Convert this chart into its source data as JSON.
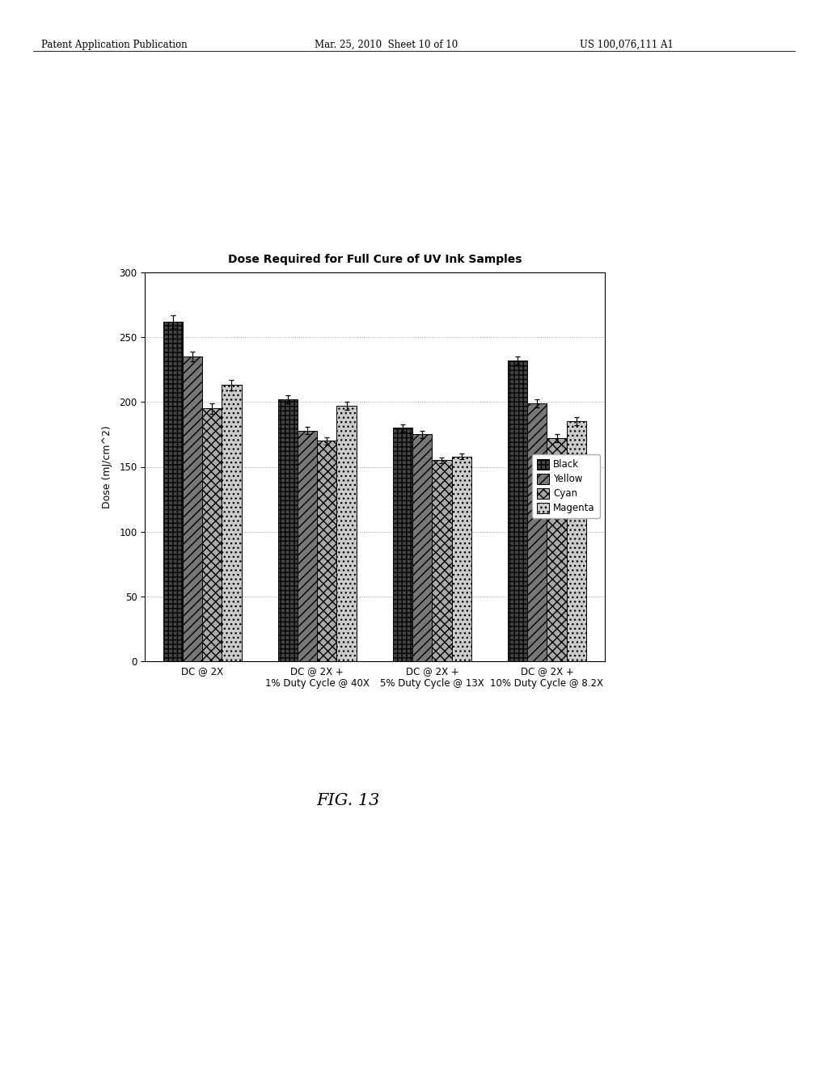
{
  "title": "Dose Required for Full Cure of UV Ink Samples",
  "ylabel": "Dose (mJ/cm^2)",
  "groups": [
    "DC @ 2X",
    "DC @ 2X +\n1% Duty Cycle @ 40X",
    "DC @ 2X +\n5% Duty Cycle @ 13X",
    "DC @ 2X +\n10% Duty Cycle @ 8.2X"
  ],
  "series_labels": [
    "Black",
    "Yellow",
    "Cyan",
    "Magenta"
  ],
  "values": [
    [
      262,
      235,
      195,
      213
    ],
    [
      202,
      178,
      170,
      197
    ],
    [
      180,
      175,
      155,
      158
    ],
    [
      232,
      199,
      172,
      185
    ]
  ],
  "errors": [
    [
      5,
      4,
      4,
      4
    ],
    [
      3,
      3,
      3,
      3
    ],
    [
      3,
      3,
      2,
      2
    ],
    [
      3,
      3,
      3,
      3
    ]
  ],
  "ylim": [
    0,
    300
  ],
  "yticks": [
    0,
    50,
    100,
    150,
    200,
    250,
    300
  ],
  "background_color": "#ffffff",
  "plot_bg_color": "#ffffff",
  "grid_color": "#999999",
  "title_fontsize": 10,
  "axis_fontsize": 9,
  "tick_fontsize": 8.5,
  "legend_fontsize": 8.5,
  "header_left": "Patent Application Publication",
  "header_mid": "Mar. 25, 2010  Sheet 10 of 10",
  "header_right": "US 100,076,111 A1",
  "fig_label": "FIG. 13",
  "bar_colors": [
    "#444444",
    "#777777",
    "#aaaaaa",
    "#cccccc"
  ],
  "hatch_patterns": [
    "+++",
    "///",
    "xxx",
    "..."
  ],
  "bar_width": 0.17
}
